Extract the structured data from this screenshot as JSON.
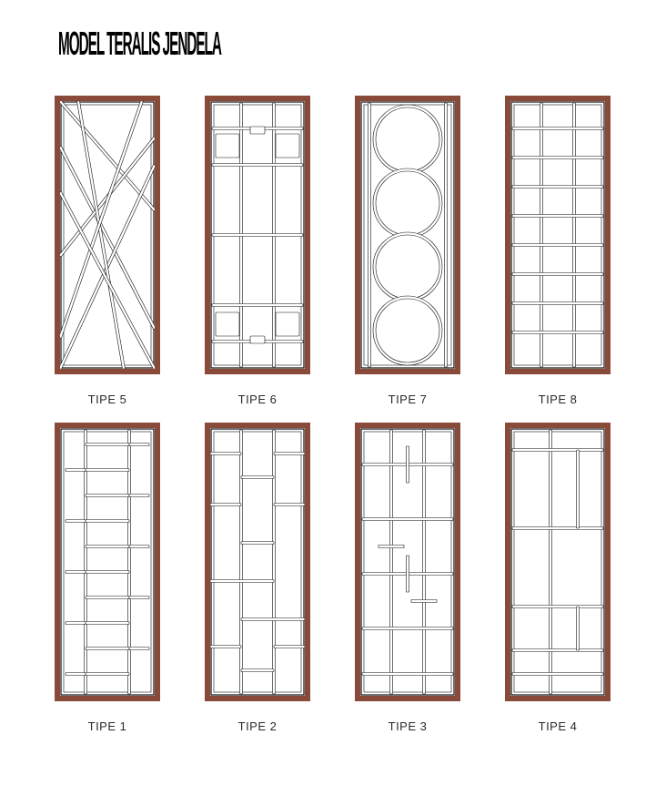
{
  "title": "MODEL TERALIS JENDELA",
  "frame_border_color": "#8a4a3a",
  "frame_fill_color": "#ffffff",
  "bar_stroke_color": "#111111",
  "bar_stroke_width": 0.6,
  "bar_fill": "#ffffff",
  "bar_thickness": 3,
  "inner_w": 104,
  "inner_h": 294,
  "panels": [
    {
      "id": "tipe5",
      "caption": "TIPE 5",
      "design": "diagonals",
      "lines": [
        [
          0,
          0,
          104,
          120
        ],
        [
          0,
          50,
          104,
          250
        ],
        [
          0,
          170,
          104,
          40
        ],
        [
          0,
          294,
          104,
          70
        ],
        [
          20,
          0,
          70,
          294
        ],
        [
          90,
          0,
          0,
          260
        ],
        [
          0,
          100,
          104,
          294
        ]
      ]
    },
    {
      "id": "tipe6",
      "caption": "TIPE 6",
      "design": "squares-notch",
      "v_bars": [
        34,
        70
      ],
      "h_bars": [
        30,
        70,
        147,
        224,
        264
      ],
      "squares": [
        [
          6,
          36,
          26,
          26
        ],
        [
          72,
          36,
          26,
          26
        ],
        [
          6,
          232,
          26,
          26
        ],
        [
          72,
          232,
          26,
          26
        ]
      ],
      "notches": [
        [
          44,
          28,
          16,
          8
        ],
        [
          44,
          258,
          16,
          8
        ]
      ]
    },
    {
      "id": "tipe7",
      "caption": "TIPE 7",
      "design": "circles",
      "circles": [
        [
          52,
          42,
          38
        ],
        [
          52,
          112,
          38
        ],
        [
          52,
          182,
          38
        ],
        [
          52,
          252,
          38
        ]
      ],
      "v_bars": [
        10,
        94
      ]
    },
    {
      "id": "tipe8",
      "caption": "TIPE 8",
      "design": "grid-boxes",
      "v_bars": [
        34,
        70
      ],
      "h_bars": [
        30,
        62,
        94,
        126,
        158,
        190,
        222,
        254
      ],
      "suppress": [
        [
          1,
          0
        ],
        [
          1,
          7
        ]
      ]
    },
    {
      "id": "tipe1",
      "caption": "TIPE 1",
      "design": "ladder-stubs",
      "v_bars": [
        28,
        76
      ],
      "rungs": [
        18,
        46,
        74,
        102,
        130,
        158,
        186,
        214,
        242,
        270
      ],
      "stub_len": 22
    },
    {
      "id": "tipe2",
      "caption": "TIPE 2",
      "design": "maze",
      "v_bars": [
        34,
        70
      ],
      "h_segments": [
        [
          0,
          34,
          28
        ],
        [
          70,
          104,
          28
        ],
        [
          34,
          70,
          54
        ],
        [
          0,
          34,
          84
        ],
        [
          70,
          104,
          84
        ],
        [
          34,
          70,
          126
        ],
        [
          0,
          70,
          168
        ],
        [
          34,
          104,
          210
        ],
        [
          0,
          34,
          240
        ],
        [
          70,
          104,
          240
        ],
        [
          34,
          70,
          266
        ]
      ]
    },
    {
      "id": "tipe3",
      "caption": "TIPE 3",
      "design": "t-lines",
      "v_bars": [
        34,
        70
      ],
      "h_bars": [
        40,
        100,
        160,
        220,
        270
      ],
      "ticks": [
        [
          52,
          20,
          52,
          60
        ],
        [
          52,
          140,
          52,
          180
        ],
        [
          20,
          130,
          48,
          130
        ],
        [
          56,
          190,
          84,
          190
        ]
      ]
    },
    {
      "id": "tipe4",
      "caption": "TIPE 4",
      "design": "mondrian",
      "v_bars": [
        44
      ],
      "h_bars": [
        24,
        110,
        196,
        244,
        270
      ],
      "extra_v": [
        [
          74,
          24,
          110
        ],
        [
          74,
          196,
          244
        ]
      ]
    }
  ]
}
